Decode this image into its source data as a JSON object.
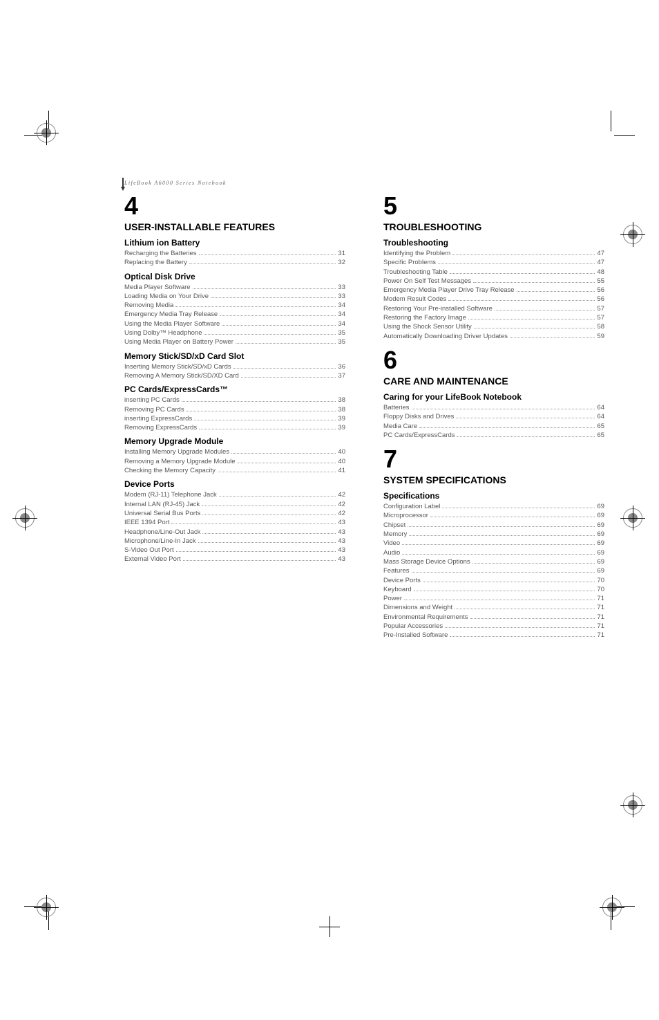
{
  "header": "LifeBook A6000 Series Notebook",
  "left_col": {
    "chapter_num": "4",
    "chapter_title": "USER-INSTALLABLE FEATURES",
    "sections": [
      {
        "title": "Lithium ion Battery",
        "items": [
          {
            "label": "Recharging the Batteries",
            "page": "31"
          },
          {
            "label": "Replacing the Battery",
            "page": "32"
          }
        ]
      },
      {
        "title": "Optical Disk Drive",
        "items": [
          {
            "label": "Media Player Software",
            "page": "33"
          },
          {
            "label": "Loading Media on Your Drive",
            "page": "33"
          },
          {
            "label": "Removing Media",
            "page": "34"
          },
          {
            "label": "Emergency Media Tray Release",
            "page": "34"
          },
          {
            "label": "Using the Media Player Software",
            "page": "34"
          },
          {
            "label": "Using Dolby™ Headphone",
            "page": "35"
          },
          {
            "label": "Using Media Player on Battery Power",
            "page": "35"
          }
        ]
      },
      {
        "title": "Memory Stick/SD/xD Card Slot",
        "items": [
          {
            "label": "Inserting Memory Stick/SD/xD Cards",
            "page": "36"
          },
          {
            "label": "Removing A Memory Stick/SD/XD Card",
            "page": "37"
          }
        ]
      },
      {
        "title": "PC Cards/ExpressCards™",
        "items": [
          {
            "label": "inserting PC Cards",
            "page": "38"
          },
          {
            "label": "Removing PC Cards",
            "page": "38"
          },
          {
            "label": "inserting ExpressCards",
            "page": "39"
          },
          {
            "label": "Removing ExpressCards",
            "page": "39"
          }
        ]
      },
      {
        "title": "Memory Upgrade Module",
        "items": [
          {
            "label": "Installing Memory Upgrade Modules",
            "page": "40"
          },
          {
            "label": "Removing a Memory Upgrade Module",
            "page": "40"
          },
          {
            "label": "Checking the Memory Capacity",
            "page": "41"
          }
        ]
      },
      {
        "title": "Device Ports",
        "items": [
          {
            "label": "Modem (RJ-11) Telephone Jack",
            "page": "42"
          },
          {
            "label": "Internal LAN (RJ-45) Jack",
            "page": "42"
          },
          {
            "label": "Universal Serial Bus Ports",
            "page": "42"
          },
          {
            "label": "IEEE 1394 Port",
            "page": "43"
          },
          {
            "label": "Headphone/Line-Out Jack",
            "page": "43"
          },
          {
            "label": "Microphone/Line-In Jack",
            "page": "43"
          },
          {
            "label": "S-Video Out Port",
            "page": "43"
          },
          {
            "label": "External Video Port",
            "page": "43"
          }
        ]
      }
    ]
  },
  "right_col": {
    "groups": [
      {
        "chapter_num": "5",
        "chapter_title": "TROUBLESHOOTING",
        "sections": [
          {
            "title": "Troubleshooting",
            "items": [
              {
                "label": "Identifying the Problem",
                "page": "47"
              },
              {
                "label": "Specific Problems",
                "page": "47"
              },
              {
                "label": "Troubleshooting Table",
                "page": "48"
              },
              {
                "label": "Power On Self Test Messages",
                "page": "55"
              },
              {
                "label": "Emergency Media Player Drive Tray Release",
                "page": "56"
              },
              {
                "label": "Modem Result Codes",
                "page": "56"
              },
              {
                "label": "Restoring Your Pre-installed Software",
                "page": "57"
              },
              {
                "label": "Restoring the Factory Image",
                "page": "57"
              },
              {
                "label": "Using the Shock Sensor Utility",
                "page": "58"
              },
              {
                "label": "Automatically Downloading Driver Updates",
                "page": "59"
              }
            ]
          }
        ]
      },
      {
        "chapter_num": "6",
        "chapter_title": "CARE AND MAINTENANCE",
        "sections": [
          {
            "title": "Caring for your LifeBook Notebook",
            "items": [
              {
                "label": "Batteries",
                "page": "64"
              },
              {
                "label": "Floppy Disks and Drives",
                "page": "64"
              },
              {
                "label": "Media Care",
                "page": "65"
              },
              {
                "label": "PC Cards/ExpressCards",
                "page": "65"
              }
            ]
          }
        ]
      },
      {
        "chapter_num": "7",
        "chapter_title": "SYSTEM SPECIFICATIONS",
        "sections": [
          {
            "title": "Specifications",
            "items": [
              {
                "label": "Configuration Label",
                "page": "69"
              },
              {
                "label": "Microprocessor",
                "page": "69"
              },
              {
                "label": "Chipset",
                "page": "69"
              },
              {
                "label": "Memory",
                "page": "69"
              },
              {
                "label": "Video",
                "page": "69"
              },
              {
                "label": "Audio",
                "page": "69"
              },
              {
                "label": "Mass Storage Device Options",
                "page": "69"
              },
              {
                "label": "Features",
                "page": "69"
              },
              {
                "label": "Device Ports",
                "page": "70"
              },
              {
                "label": "Keyboard",
                "page": "70"
              },
              {
                "label": "Power",
                "page": "71"
              },
              {
                "label": "Dimensions and Weight",
                "page": "71"
              },
              {
                "label": "Environmental Requirements",
                "page": "71"
              },
              {
                "label": "Popular Accessories",
                "page": "71"
              },
              {
                "label": "Pre-Installed Software",
                "page": "71"
              }
            ]
          }
        ]
      }
    ]
  }
}
